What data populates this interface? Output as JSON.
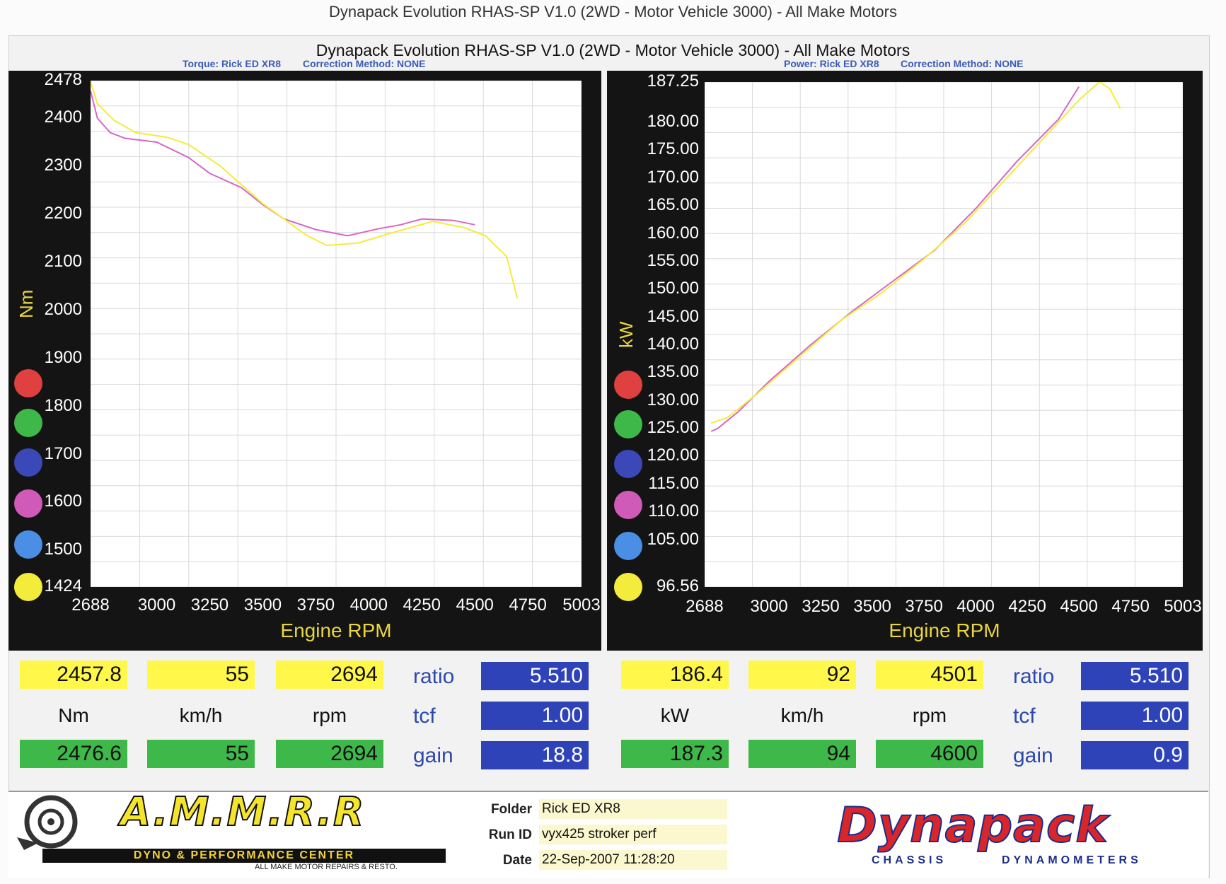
{
  "page_title": "Dynapack Evolution RHAS-SP V1.0  (2WD - Motor Vehicle 3000) - All Make Motors",
  "colors": {
    "yellow": "#fff74a",
    "magenta": "#d966c8",
    "green": "#3fb84a",
    "blue": "#2f43b8",
    "axis_label": "#e8d640"
  },
  "dots": [
    {
      "color": "#e04040"
    },
    {
      "color": "#3fb84a"
    },
    {
      "color": "#3a48b8"
    },
    {
      "color": "#d05ab8"
    },
    {
      "color": "#4a8ee6"
    },
    {
      "color": "#f4ec3a"
    }
  ],
  "chart_data": [
    {
      "type": "line",
      "title": "Torque: Rick ED XR8",
      "correction": "Correction Method: NONE",
      "xlabel": "Engine RPM",
      "ylabel": "Nm",
      "xlim": [
        2688,
        5003
      ],
      "ylim": [
        1424,
        2478
      ],
      "x_ticks": [
        "2688",
        "3000",
        "3250",
        "3500",
        "3750",
        "4000",
        "4250",
        "4500",
        "4750",
        "5003"
      ],
      "y_ticks": [
        "2478",
        "2400",
        "2300",
        "2200",
        "2100",
        "2000",
        "1900",
        "1800",
        "1700",
        "1600",
        "1500",
        "1424"
      ],
      "grid": true,
      "series": [
        {
          "color": "#d966c8",
          "x": [
            2688,
            2720,
            2780,
            2850,
            3000,
            3150,
            3250,
            3400,
            3500,
            3600,
            3750,
            3900,
            4050,
            4150,
            4250,
            4400,
            4500
          ],
          "y": [
            2457,
            2400,
            2370,
            2358,
            2350,
            2318,
            2285,
            2255,
            2220,
            2190,
            2168,
            2155,
            2170,
            2178,
            2190,
            2187,
            2178
          ]
        },
        {
          "color": "#f4ec3a",
          "x": [
            2688,
            2720,
            2800,
            2900,
            3050,
            3150,
            3300,
            3500,
            3700,
            3800,
            3950,
            4100,
            4300,
            4450,
            4550,
            4650,
            4700
          ],
          "y": [
            2476,
            2430,
            2395,
            2370,
            2360,
            2345,
            2300,
            2222,
            2158,
            2135,
            2140,
            2160,
            2185,
            2172,
            2155,
            2112,
            2025
          ]
        }
      ]
    },
    {
      "type": "line",
      "title": "Power: Rick ED XR8",
      "correction": "Correction Method: NONE",
      "xlabel": "Engine RPM",
      "ylabel": "kW",
      "xlim": [
        2688,
        5003
      ],
      "ylim": [
        96.56,
        187.25
      ],
      "x_ticks": [
        "2688",
        "3000",
        "3250",
        "3500",
        "3750",
        "4000",
        "4250",
        "4500",
        "4750",
        "5003"
      ],
      "y_ticks": [
        "187.25",
        "180.00",
        "175.00",
        "170.00",
        "165.00",
        "160.00",
        "155.00",
        "150.00",
        "145.00",
        "140.00",
        "135.00",
        "130.00",
        "125.00",
        "120.00",
        "115.00",
        "110.00",
        "105.00",
        "96.56"
      ],
      "grid": true,
      "series": [
        {
          "color": "#d966c8",
          "x": [
            2720,
            2750,
            2850,
            3000,
            3200,
            3400,
            3600,
            3800,
            4000,
            4200,
            4400,
            4500
          ],
          "y": [
            124.5,
            125.0,
            128.0,
            133.5,
            140.0,
            146.0,
            151.5,
            157.0,
            164.5,
            173.0,
            180.5,
            186.4
          ]
        },
        {
          "color": "#f4ec3a",
          "x": [
            2720,
            2800,
            2950,
            3150,
            3350,
            3550,
            3750,
            3950,
            4150,
            4350,
            4500,
            4600,
            4650,
            4700
          ],
          "y": [
            126.0,
            127.0,
            131.5,
            138.0,
            144.5,
            149.5,
            155.5,
            162.0,
            170.0,
            178.0,
            184.0,
            187.3,
            186.0,
            182.5
          ]
        }
      ]
    }
  ],
  "readouts": {
    "left": {
      "yellow": [
        "2457.8",
        "55",
        "2694"
      ],
      "units": [
        "Nm",
        "km/h",
        "rpm"
      ],
      "green": [
        "2476.6",
        "55",
        "2694"
      ],
      "labels": [
        "ratio",
        "tcf",
        "gain"
      ],
      "blue": [
        "5.510",
        "1.00",
        "18.8"
      ]
    },
    "right": {
      "yellow": [
        "186.4",
        "92",
        "4501"
      ],
      "units": [
        "kW",
        "km/h",
        "rpm"
      ],
      "green": [
        "187.3",
        "94",
        "4600"
      ],
      "labels": [
        "ratio",
        "tcf",
        "gain"
      ],
      "blue": [
        "5.510",
        "1.00",
        "0.9"
      ]
    }
  },
  "footer": {
    "logo_text": "A.M.M.R.R",
    "logo_sub": "DYNO & PERFORMANCE CENTER",
    "logo_tag": "ALL MAKE MOTOR REPAIRS & RESTO.",
    "fields": [
      {
        "label": "Folder",
        "value": "Rick ED XR8"
      },
      {
        "label": "Run ID",
        "value": "vyx425 stroker perf"
      },
      {
        "label": "Date",
        "value": "22-Sep-2007  11:28:20"
      }
    ],
    "brand": "Dynapack",
    "brand_sub_left": "CHASSIS",
    "brand_sub_right": "DYNAMOMETERS"
  }
}
